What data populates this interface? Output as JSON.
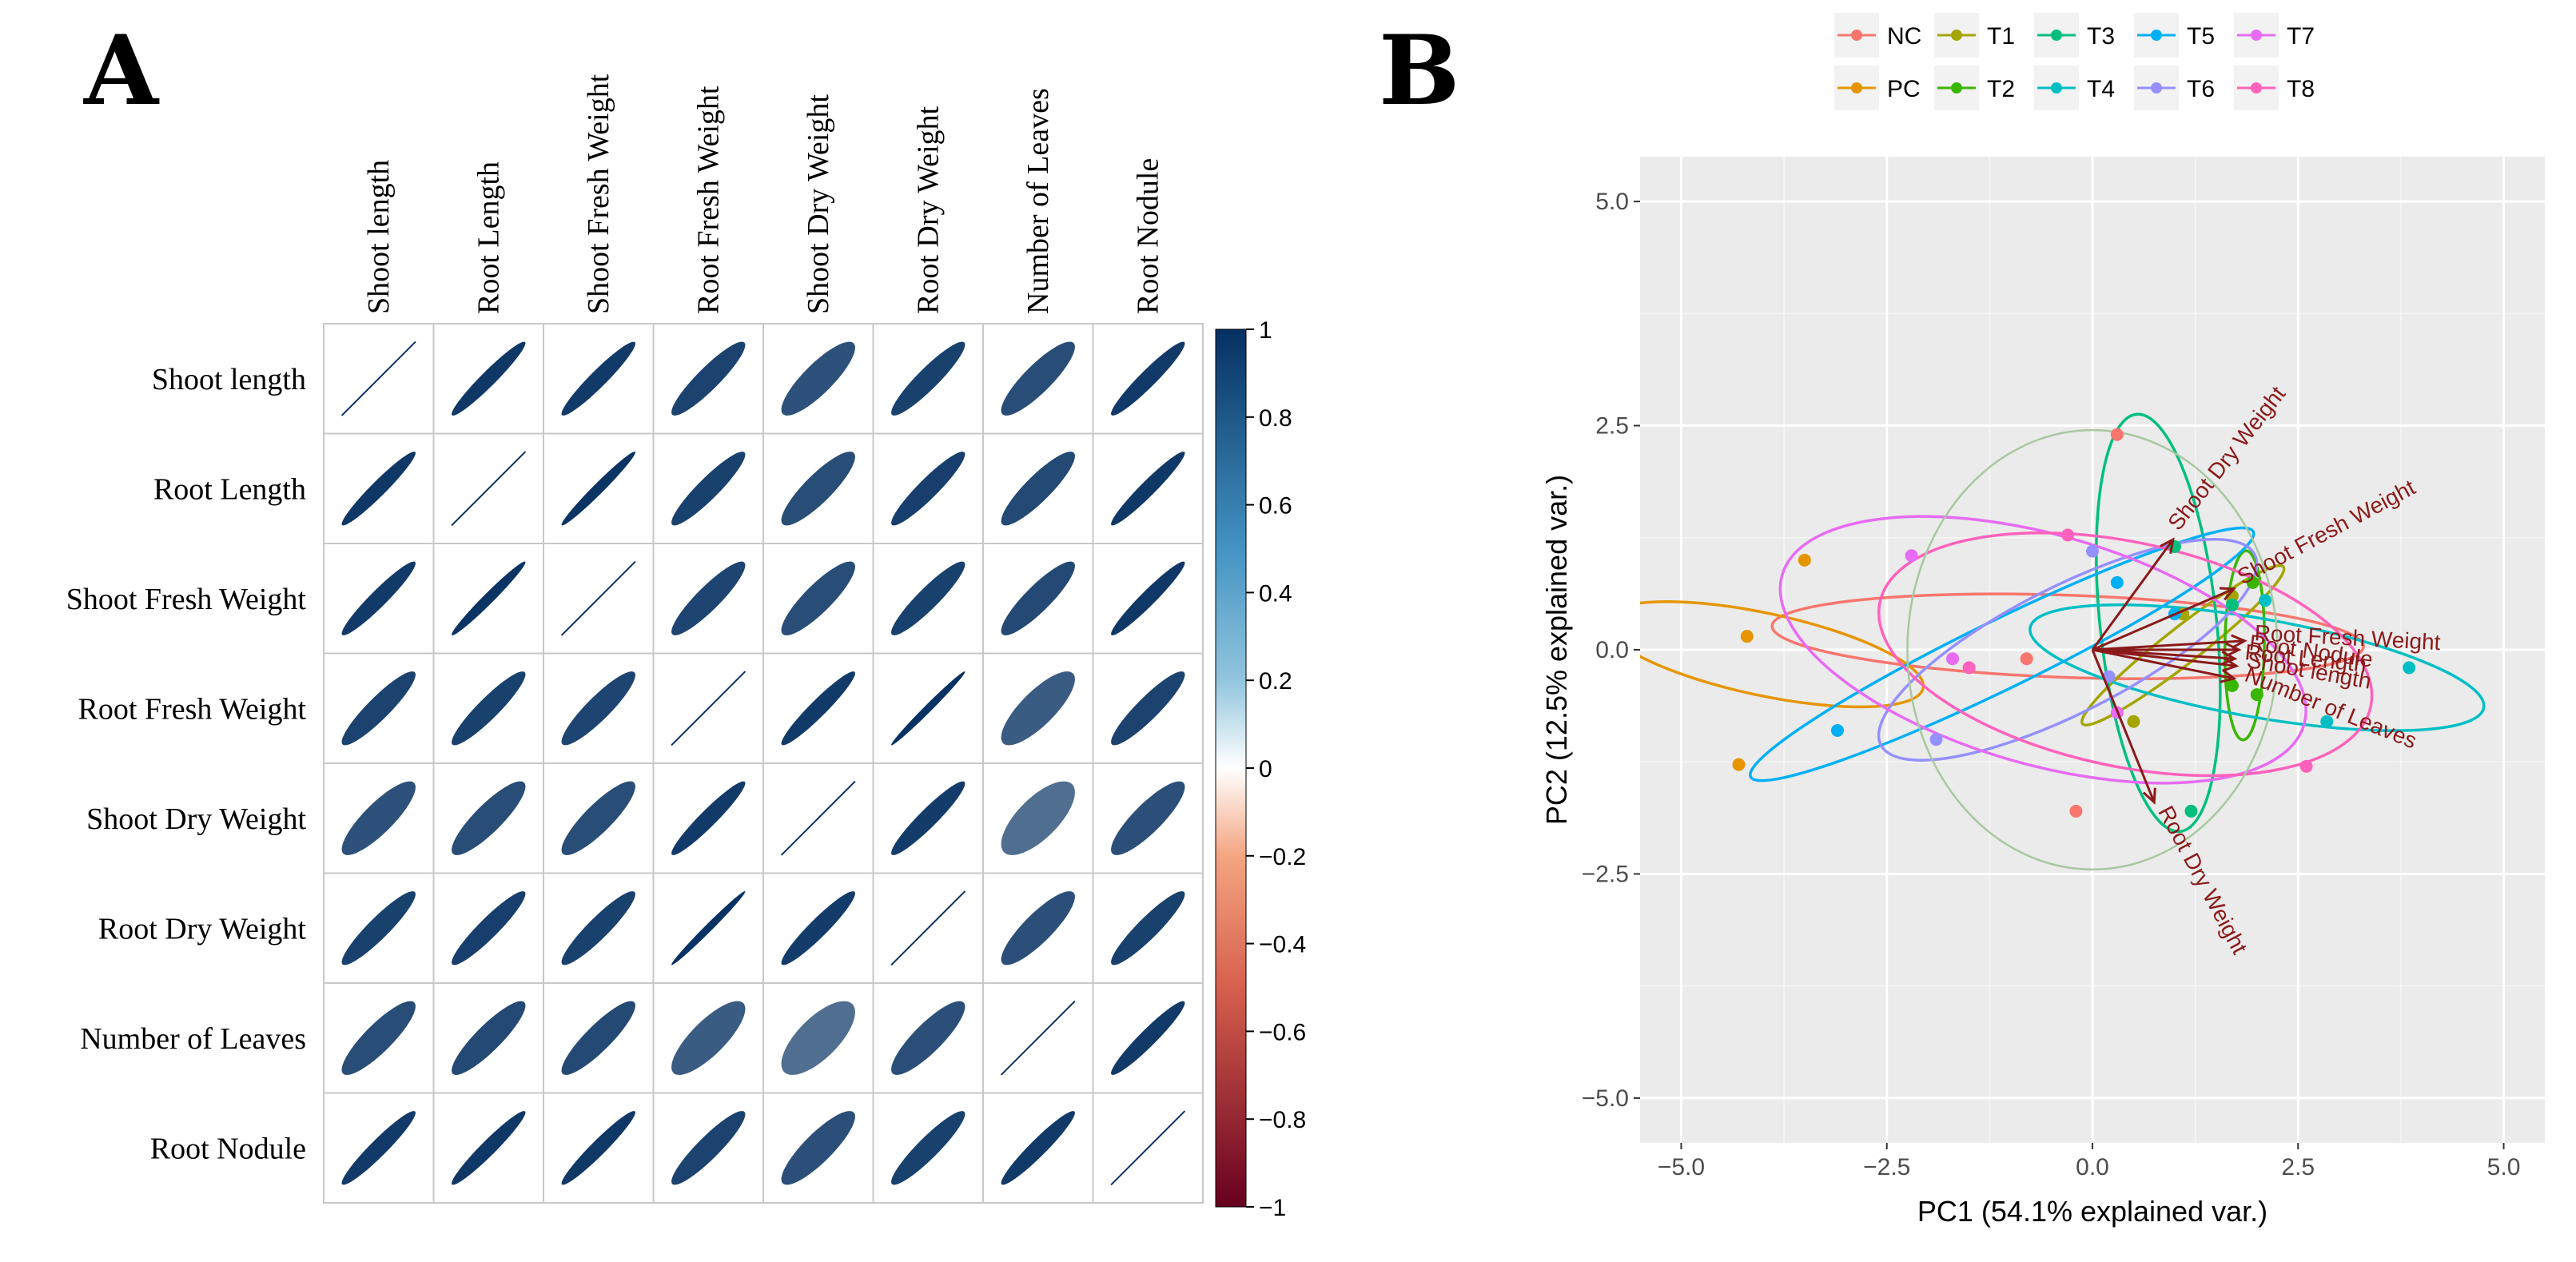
{
  "panel_a_label": "A",
  "panel_b_label": "B",
  "chart_data": [
    {
      "type": "heatmap",
      "subtype": "correlation-ellipse-matrix",
      "variables": [
        "Shoot length",
        "Root Length",
        "Shoot Fresh Weight",
        "Root Fresh Weight",
        "Shoot Dry Weight",
        "Root Dry Weight",
        "Number of Leaves",
        "Root Nodule"
      ],
      "matrix": [
        [
          1.0,
          0.96,
          0.95,
          0.91,
          0.84,
          0.92,
          0.86,
          0.95
        ],
        [
          0.96,
          1.0,
          0.98,
          0.92,
          0.86,
          0.93,
          0.88,
          0.96
        ],
        [
          0.95,
          0.98,
          1.0,
          0.9,
          0.86,
          0.92,
          0.88,
          0.96
        ],
        [
          0.91,
          0.92,
          0.9,
          1.0,
          0.95,
          0.99,
          0.79,
          0.91
        ],
        [
          0.84,
          0.86,
          0.86,
          0.95,
          1.0,
          0.94,
          0.7,
          0.85
        ],
        [
          0.92,
          0.93,
          0.92,
          0.99,
          0.94,
          1.0,
          0.85,
          0.92
        ],
        [
          0.86,
          0.88,
          0.88,
          0.79,
          0.7,
          0.85,
          1.0,
          0.95
        ],
        [
          0.95,
          0.96,
          0.96,
          0.91,
          0.85,
          0.92,
          0.95,
          1.0
        ]
      ],
      "colorbar": {
        "range": [
          -1,
          1
        ],
        "ticks": [
          "1",
          "0.8",
          "0.6",
          "0.4",
          "0.2",
          "0",
          "−0.2",
          "−0.4",
          "−0.6",
          "−0.8",
          "−1"
        ],
        "colors": {
          "negative": "#67001f",
          "mid": "#ffffff",
          "positive": "#053061"
        }
      }
    },
    {
      "type": "scatter",
      "subtype": "pca-biplot",
      "xlabel": "PC1 (54.1% explained var.)",
      "ylabel": "PC2 (12.5% explained var.)",
      "xlim": [
        -5.5,
        5.5
      ],
      "ylim": [
        -5.5,
        5.5
      ],
      "xticks": [
        -5.0,
        -2.5,
        0.0,
        2.5,
        5.0
      ],
      "yticks": [
        -5.0,
        -2.5,
        0.0,
        2.5,
        5.0
      ],
      "xtick_labels": [
        "−5.0",
        "−2.5",
        "0.0",
        "2.5",
        "5.0"
      ],
      "ytick_labels": [
        "−5.0",
        "−2.5",
        "0.0",
        "2.5",
        "5.0"
      ],
      "legend_position": "top",
      "groups": [
        {
          "name": "NC",
          "color": "#F8766D",
          "points": [
            [
              0.3,
              2.4
            ],
            [
              -0.2,
              -1.8
            ],
            [
              -0.8,
              -0.1
            ]
          ],
          "ellipse": {
            "cx": -0.3,
            "cy": 0.15,
            "rx": 0.5,
            "ry": 3.3,
            "angle": 88
          }
        },
        {
          "name": "PC",
          "color": "#E69500",
          "points": [
            [
              -3.5,
              1.0
            ],
            [
              -4.2,
              0.15
            ],
            [
              -4.3,
              -1.28
            ]
          ],
          "ellipse": {
            "cx": -4.0,
            "cy": -0.05,
            "rx": 0.5,
            "ry": 1.82,
            "angle": 78
          }
        },
        {
          "name": "T1",
          "color": "#A3A500",
          "points": [
            [
              1.1,
              0.4
            ],
            [
              1.7,
              0.6
            ],
            [
              0.5,
              -0.8
            ]
          ],
          "ellipse": {
            "cx": 1.1,
            "cy": 0.05,
            "rx": 1.55,
            "ry": 0.2,
            "angle": 38
          }
        },
        {
          "name": "T2",
          "color": "#39B600",
          "points": [
            [
              1.95,
              0.75
            ],
            [
              2.0,
              -0.5
            ],
            [
              1.7,
              -0.4
            ]
          ],
          "ellipse": {
            "cx": 1.85,
            "cy": 0.05,
            "rx": 1.15,
            "ry": 0.22,
            "angle": 89
          }
        },
        {
          "name": "T3",
          "color": "#00BF7D",
          "points": [
            [
              1.2,
              -1.8
            ],
            [
              1.0,
              1.15
            ],
            [
              1.7,
              0.5
            ]
          ],
          "ellipse": {
            "cx": 0.8,
            "cy": 0.3,
            "rx": 2.55,
            "ry": 0.65,
            "angle": 96
          }
        },
        {
          "name": "T4",
          "color": "#00BFC4",
          "points": [
            [
              3.85,
              -0.2
            ],
            [
              2.85,
              -0.8
            ],
            [
              2.1,
              0.55
            ]
          ],
          "ellipse": {
            "cx": 2.0,
            "cy": -0.2,
            "rx": 2.8,
            "ry": 0.55,
            "angle": -10
          }
        },
        {
          "name": "T5",
          "color": "#00B0F6",
          "points": [
            [
              -3.1,
              -0.9
            ],
            [
              0.3,
              0.75
            ],
            [
              1.0,
              0.4
            ]
          ],
          "ellipse": {
            "cx": -1.1,
            "cy": -0.05,
            "rx": 3.4,
            "ry": 0.38,
            "angle": 26
          }
        },
        {
          "name": "T6",
          "color": "#9590FF",
          "points": [
            [
              -1.9,
              -1.0
            ],
            [
              0.2,
              -0.3
            ],
            [
              0.0,
              1.1
            ]
          ],
          "ellipse": {
            "cx": -0.3,
            "cy": 0.0,
            "rx": 2.55,
            "ry": 0.7,
            "angle": 27
          }
        },
        {
          "name": "T7",
          "color": "#E76BF3",
          "points": [
            [
              -2.2,
              1.05
            ],
            [
              -1.7,
              -0.1
            ],
            [
              0.3,
              -0.7
            ]
          ],
          "ellipse": {
            "cx": -0.6,
            "cy": 0.0,
            "rx": 3.3,
            "ry": 1.28,
            "angle": -16
          }
        },
        {
          "name": "T8",
          "color": "#FF62BC",
          "points": [
            [
              2.6,
              -1.3
            ],
            [
              -1.5,
              -0.2
            ],
            [
              -0.3,
              1.28
            ]
          ],
          "ellipse": {
            "cx": 0.4,
            "cy": -0.05,
            "rx": 3.05,
            "ry": 1.25,
            "angle": -12
          }
        }
      ],
      "loadings": [
        {
          "name": "Shoot Dry Weight",
          "x": 0.98,
          "y": 1.23,
          "label_rotation": -52
        },
        {
          "name": "Shoot Fresh Weight",
          "x": 1.72,
          "y": 0.68,
          "label_rotation": -28
        },
        {
          "name": "Root Fresh Weight",
          "x": 1.85,
          "y": 0.1,
          "label_rotation": 3
        },
        {
          "name": "Root Nodule",
          "x": 1.78,
          "y": 0.0,
          "label_rotation": 8
        },
        {
          "name": "Shoot length",
          "x": 1.75,
          "y": -0.18,
          "label_rotation": 10
        },
        {
          "name": "Root Length",
          "x": 1.73,
          "y": -0.1,
          "label_rotation": 6
        },
        {
          "name": "Number of Leaves",
          "x": 1.72,
          "y": -0.32,
          "label_rotation": 22
        },
        {
          "name": "Root Dry Weight",
          "x": 0.75,
          "y": -1.7,
          "label_rotation": 62
        }
      ],
      "loading_color": "#8B1A1A"
    }
  ]
}
